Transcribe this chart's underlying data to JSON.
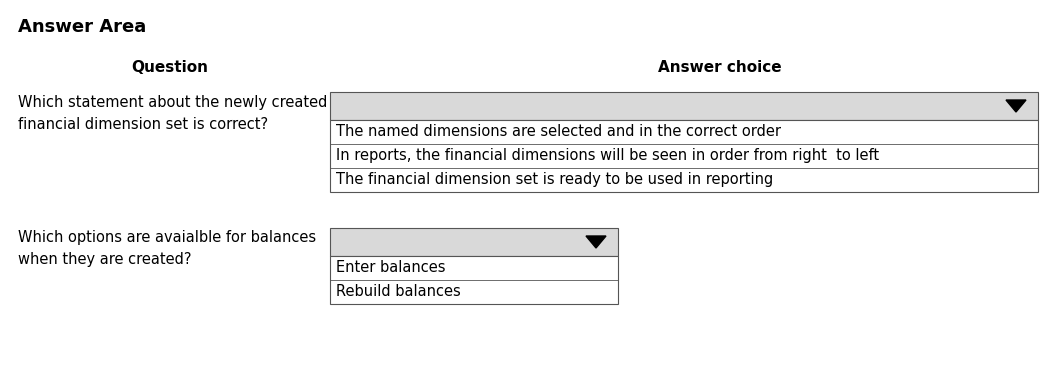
{
  "title": "Answer Area",
  "col_question": "Question",
  "col_answer": "Answer choice",
  "q1_text": "Which statement about the newly created\nfinancial dimension set is correct?",
  "q1_dropdown_items": [
    "The named dimensions are selected and in the correct order",
    "In reports, the financial dimensions will be seen in order from right  to left",
    "The financial dimension set is ready to be used in reporting"
  ],
  "q2_text": "Which options are avaialble for balances\nwhen they are created?",
  "q2_dropdown_items": [
    "Enter balances",
    "Rebuild balances"
  ],
  "bg_color": "#ffffff",
  "dropdown_header_bg": "#d9d9d9",
  "dropdown_item_bg": "#ffffff",
  "border_color": "#555555",
  "text_color": "#000000",
  "title_fontsize": 13,
  "header_fontsize": 11,
  "body_fontsize": 10.5
}
